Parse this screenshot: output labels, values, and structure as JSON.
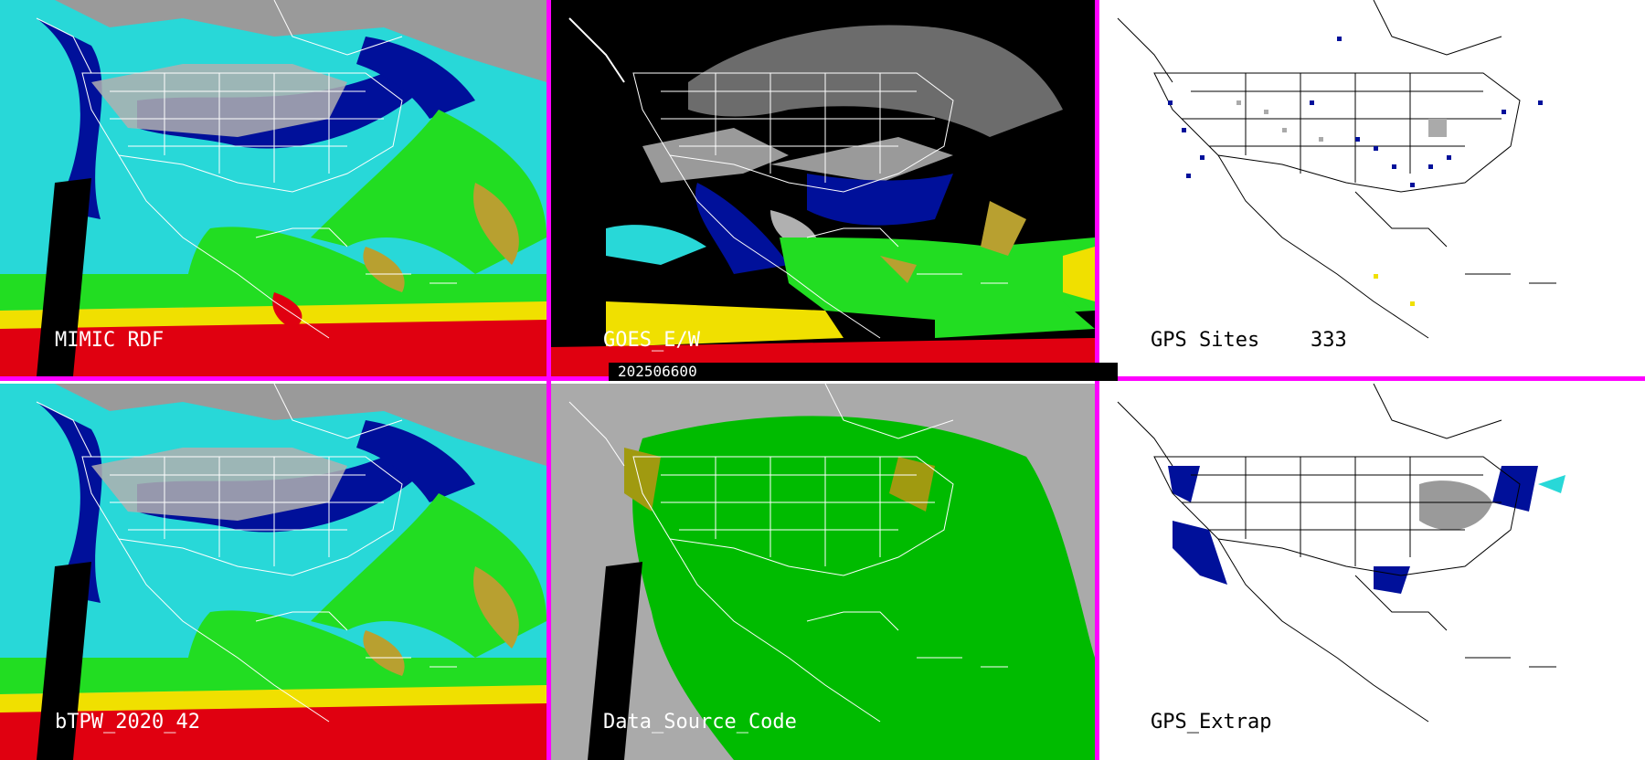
{
  "panels": {
    "mimic_rdf": {
      "label": "MIMIC RDF"
    },
    "goes_ew": {
      "label": "GOES_E/W",
      "timestamp": "202506600"
    },
    "gps_sites": {
      "label": "GPS Sites",
      "count": "333"
    },
    "btpw": {
      "label": "bTPW_2020_42"
    },
    "data_source": {
      "label": "Data_Source_Code"
    },
    "gps_extrap": {
      "label": "GPS_Extrap"
    }
  },
  "colors": {
    "separator": "#ff00ff",
    "tpw_gray": "#9a9a9a",
    "tpw_navy": "#00109a",
    "tpw_cyan": "#28d8d8",
    "tpw_green": "#22dd22",
    "tpw_olive": "#b8a030",
    "tpw_yellow": "#f0e000",
    "tpw_red": "#e00010",
    "source_gray": "#aaaaaa",
    "source_green": "#00bb00",
    "source_olive": "#a09a10",
    "map_line": "#ffffff",
    "map_line_dark": "#000000"
  }
}
